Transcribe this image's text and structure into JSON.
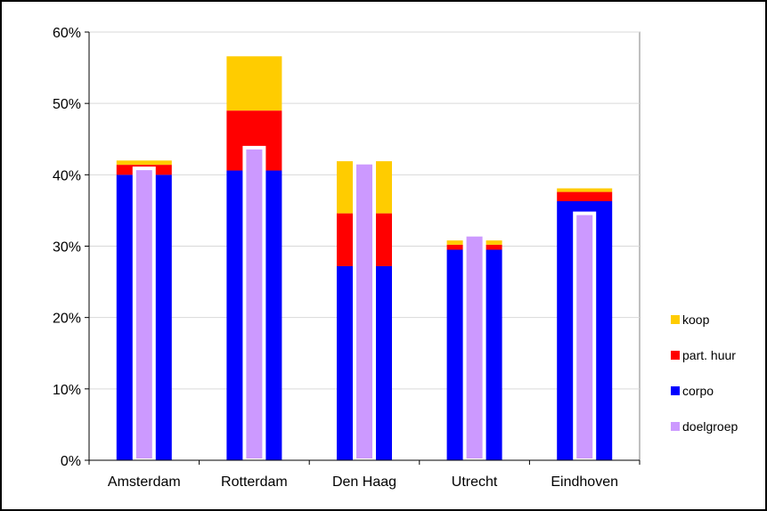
{
  "chart_data": {
    "type": "bar",
    "categories": [
      "Amsterdam",
      "Rotterdam",
      "Den Haag",
      "Utrecht",
      "Eindhoven"
    ],
    "stacked_series": [
      {
        "name": "corpo",
        "color": "#0000ff",
        "values": [
          40.0,
          40.6,
          27.2,
          29.5,
          36.3
        ]
      },
      {
        "name": "part. huur",
        "color": "#ff0000",
        "values": [
          1.4,
          8.4,
          7.4,
          0.7,
          1.3
        ]
      },
      {
        "name": "koop",
        "color": "#ffcc00",
        "values": [
          0.6,
          7.6,
          7.3,
          0.6,
          0.5
        ]
      }
    ],
    "overlay_series": {
      "name": "doelgroep",
      "color": "#cc99ff",
      "values": [
        40.9,
        43.8,
        41.7,
        31.6,
        34.6
      ]
    },
    "ylim": [
      0,
      60
    ],
    "yticks": [
      "0%",
      "10%",
      "20%",
      "30%",
      "40%",
      "50%",
      "60%"
    ],
    "ytick_values": [
      0,
      10,
      20,
      30,
      40,
      50,
      60
    ],
    "legend": [
      "koop",
      "part. huur",
      "corpo",
      "doelgroep"
    ],
    "legend_position": "right",
    "grid": true
  }
}
